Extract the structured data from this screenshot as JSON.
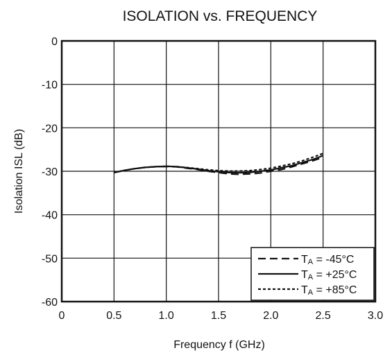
{
  "chart_data": {
    "type": "line",
    "title": "ISOLATION vs. FREQUENCY",
    "xlabel": "Frequency  f (GHz)",
    "ylabel": "Isolation  ISL (dB)",
    "xlim": [
      0,
      3.0
    ],
    "ylim": [
      -60,
      0
    ],
    "xticks": [
      0,
      0.5,
      1.0,
      1.5,
      2.0,
      2.5,
      3.0
    ],
    "xtick_labels": [
      "0",
      "0.5",
      "1.0",
      "1.5",
      "2.0",
      "2.5",
      "3.0"
    ],
    "yticks": [
      0,
      -10,
      -20,
      -30,
      -40,
      -50,
      -60
    ],
    "ytick_labels": [
      "0",
      "-10",
      "-20",
      "-30",
      "-40",
      "-50",
      "-60"
    ],
    "grid": true,
    "legend_position": "bottom-right",
    "series": [
      {
        "name": "TA = -45°C",
        "style": "dashed",
        "x": [
          0.5,
          0.6,
          0.7,
          0.8,
          0.9,
          1.0,
          1.1,
          1.2,
          1.3,
          1.4,
          1.5,
          1.6,
          1.7,
          1.8,
          1.9,
          2.0,
          2.1,
          2.2,
          2.3,
          2.4,
          2.5
        ],
        "y": [
          -30.3,
          -29.8,
          -29.4,
          -29.1,
          -28.95,
          -28.9,
          -29.0,
          -29.3,
          -29.6,
          -30.0,
          -30.3,
          -30.6,
          -30.7,
          -30.6,
          -30.4,
          -30.0,
          -29.6,
          -29.0,
          -28.3,
          -27.6,
          -26.8
        ]
      },
      {
        "name": "TA = +25°C",
        "style": "solid",
        "x": [
          0.5,
          0.6,
          0.7,
          0.8,
          0.9,
          1.0,
          1.1,
          1.2,
          1.3,
          1.4,
          1.5,
          1.6,
          1.7,
          1.8,
          1.9,
          2.0,
          2.1,
          2.2,
          2.3,
          2.4,
          2.5
        ],
        "y": [
          -30.3,
          -29.8,
          -29.4,
          -29.1,
          -28.95,
          -28.85,
          -28.95,
          -29.2,
          -29.5,
          -29.85,
          -30.1,
          -30.3,
          -30.35,
          -30.25,
          -30.0,
          -29.7,
          -29.2,
          -28.7,
          -28.0,
          -27.3,
          -26.4
        ]
      },
      {
        "name": "TA = +85°C",
        "style": "dotted",
        "x": [
          0.5,
          0.6,
          0.7,
          0.8,
          0.9,
          1.0,
          1.1,
          1.2,
          1.3,
          1.4,
          1.5,
          1.6,
          1.7,
          1.8,
          1.9,
          2.0,
          2.1,
          2.2,
          2.3,
          2.4,
          2.5
        ],
        "y": [
          -30.3,
          -29.8,
          -29.4,
          -29.1,
          -28.95,
          -28.85,
          -28.95,
          -29.15,
          -29.4,
          -29.65,
          -29.85,
          -29.95,
          -29.95,
          -29.85,
          -29.6,
          -29.3,
          -28.8,
          -28.3,
          -27.6,
          -26.8,
          -25.9
        ]
      }
    ],
    "legend_entries": [
      {
        "prefix": "T",
        "sub": "A",
        "suffix": " = -45°C"
      },
      {
        "prefix": "T",
        "sub": "A",
        "suffix": " = +25°C"
      },
      {
        "prefix": "T",
        "sub": "A",
        "suffix": " = +85°C"
      }
    ]
  }
}
